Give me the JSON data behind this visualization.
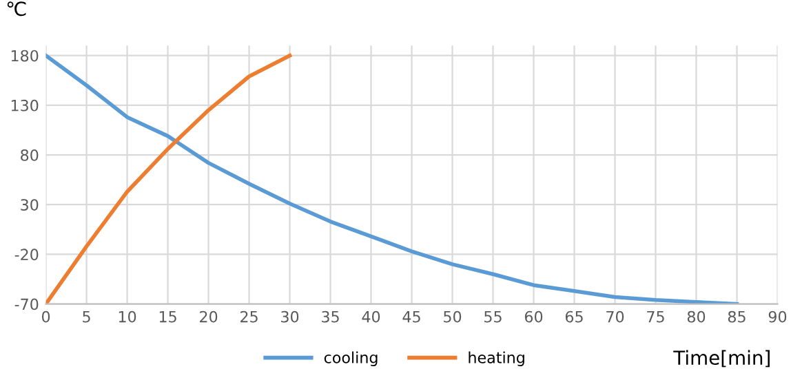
{
  "chart_data": {
    "type": "line",
    "ylabel": "℃",
    "xlabel": "Time[min]",
    "x": [
      0,
      5,
      10,
      15,
      20,
      25,
      30,
      35,
      40,
      45,
      50,
      55,
      60,
      65,
      70,
      75,
      80,
      85
    ],
    "series": [
      {
        "name": "cooling",
        "color": "#5b9bd5",
        "values": [
          180,
          150,
          118,
          99,
          72,
          51,
          31,
          13,
          -2,
          -17,
          -30,
          -40,
          -51,
          -57,
          -63,
          -66,
          -68,
          -70
        ]
      },
      {
        "name": "heating",
        "color": "#ed7d31",
        "x": [
          0,
          5,
          10,
          15,
          20,
          25,
          30
        ],
        "values": [
          -70,
          -12,
          43,
          86,
          125,
          159,
          180
        ]
      }
    ],
    "xlim": [
      0,
      90
    ],
    "xticks": [
      0,
      5,
      10,
      15,
      20,
      25,
      30,
      35,
      40,
      45,
      50,
      55,
      60,
      65,
      70,
      75,
      80,
      85,
      90
    ],
    "ylim": [
      -70,
      190
    ],
    "yticks": [
      -70,
      -20,
      30,
      80,
      130,
      180
    ],
    "grid": true,
    "legend": "bottom",
    "marker": "none",
    "line_style": "solid"
  }
}
